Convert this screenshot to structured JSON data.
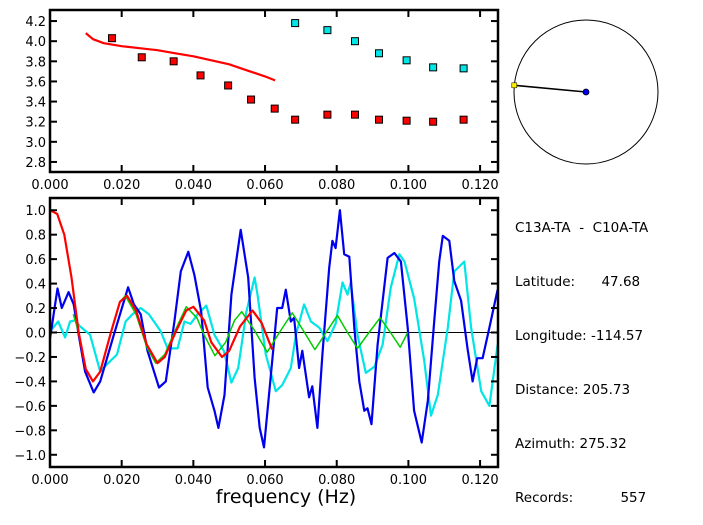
{
  "colors": {
    "red": "#ff0000",
    "cyan": "#00e5e5",
    "blue": "#0000ee",
    "green": "#00cc00",
    "yellow": "#ffee00",
    "axis": "#000000"
  },
  "chart_data": [
    {
      "type": "scatter",
      "title": "",
      "xlabel": "",
      "ylabel": "",
      "xlim": [
        0,
        0.125
      ],
      "ylim": [
        2.7,
        4.31
      ],
      "xticks": [
        "0.000",
        "0.020",
        "0.040",
        "0.060",
        "0.080",
        "0.100",
        "0.120"
      ],
      "yticks": [
        "2.8",
        "3.0",
        "3.2",
        "3.4",
        "3.6",
        "3.8",
        "4.0",
        "4.2"
      ],
      "series": [
        {
          "name": "red-points",
          "kind": "points",
          "color": "red",
          "x": [
            0.0173,
            0.0256,
            0.0345,
            0.042,
            0.0497,
            0.0561,
            0.0627,
            0.0684,
            0.0774,
            0.0851,
            0.0918,
            0.0995,
            0.1069,
            0.1154
          ],
          "y": [
            4.03,
            3.84,
            3.8,
            3.66,
            3.56,
            3.42,
            3.33,
            3.22,
            3.27,
            3.27,
            3.22,
            3.21,
            3.2,
            3.22
          ]
        },
        {
          "name": "cyan-points",
          "kind": "points",
          "color": "cyan",
          "x": [
            0.0684,
            0.0774,
            0.0851,
            0.0918,
            0.0995,
            0.1069,
            0.1154
          ],
          "y": [
            4.18,
            4.11,
            4.0,
            3.88,
            3.81,
            3.74,
            3.73
          ]
        },
        {
          "name": "red-curve",
          "kind": "line",
          "color": "red",
          "x": [
            0.01,
            0.012,
            0.015,
            0.02,
            0.025,
            0.03,
            0.035,
            0.04,
            0.045,
            0.05,
            0.055,
            0.06,
            0.0628
          ],
          "y": [
            4.08,
            4.02,
            3.98,
            3.95,
            3.93,
            3.91,
            3.88,
            3.85,
            3.81,
            3.77,
            3.71,
            3.65,
            3.61
          ]
        }
      ]
    },
    {
      "type": "line",
      "title": "",
      "xlabel": "frequency (Hz)",
      "ylabel": "",
      "xlim": [
        0,
        0.125
      ],
      "ylim": [
        -1.1,
        1.1
      ],
      "xticks": [
        "0.000",
        "0.020",
        "0.040",
        "0.060",
        "0.080",
        "0.100",
        "0.120"
      ],
      "yticks": [
        "-1.0",
        "-0.8",
        "-0.6",
        "-0.4",
        "-0.2",
        "0.0",
        "0.2",
        "0.4",
        "0.6",
        "0.8",
        "1.0"
      ],
      "zero_line": true,
      "series": [
        {
          "name": "cyan",
          "color": "cyan",
          "x": [
            0,
            0.0023,
            0.0042,
            0.0056,
            0.007,
            0.0084,
            0.0112,
            0.014,
            0.0159,
            0.0187,
            0.0211,
            0.023,
            0.0253,
            0.0276,
            0.0309,
            0.0328,
            0.0356,
            0.0375,
            0.0392,
            0.0412,
            0.0436,
            0.0459,
            0.0485,
            0.0506,
            0.0525,
            0.0548,
            0.0571,
            0.0579,
            0.0602,
            0.063,
            0.0648,
            0.0672,
            0.0686,
            0.0709,
            0.0728,
            0.0751,
            0.0774,
            0.0797,
            0.0816,
            0.083,
            0.0839,
            0.0858,
            0.0881,
            0.0905,
            0.0928,
            0.0951,
            0.0975,
            0.0989,
            0.1016,
            0.1044,
            0.1063,
            0.1082,
            0.111,
            0.1128,
            0.1156,
            0.1175,
            0.1203,
            0.1226,
            0.1249
          ],
          "y": [
            0.01,
            0.09,
            -0.04,
            0.09,
            0.1,
            0.05,
            -0.02,
            -0.32,
            -0.26,
            -0.18,
            0.09,
            0.15,
            0.2,
            0.15,
            0.01,
            -0.13,
            -0.13,
            0.09,
            0.07,
            0.15,
            0.22,
            -0.02,
            -0.15,
            -0.41,
            -0.29,
            0.17,
            0.45,
            0.31,
            -0.18,
            -0.48,
            -0.43,
            -0.29,
            -0.02,
            0.23,
            0.09,
            0.04,
            -0.07,
            0.07,
            0.41,
            0.31,
            0.41,
            -0.02,
            -0.33,
            -0.28,
            -0.1,
            0.37,
            0.64,
            0.58,
            0.28,
            -0.23,
            -0.68,
            -0.51,
            0.04,
            0.5,
            0.58,
            0.04,
            -0.48,
            -0.6,
            -0.1
          ]
        },
        {
          "name": "blue",
          "color": "blue",
          "x": [
            0,
            0.0021,
            0.0033,
            0.0052,
            0.0066,
            0.008,
            0.0098,
            0.0122,
            0.014,
            0.0178,
            0.0218,
            0.0234,
            0.0253,
            0.0272,
            0.0304,
            0.0323,
            0.0347,
            0.0365,
            0.0386,
            0.0403,
            0.0422,
            0.044,
            0.0459,
            0.047,
            0.0487,
            0.0506,
            0.0532,
            0.0553,
            0.0571,
            0.0585,
            0.0597,
            0.0611,
            0.0634,
            0.0648,
            0.0658,
            0.0672,
            0.0681,
            0.0695,
            0.0704,
            0.0723,
            0.0732,
            0.0746,
            0.076,
            0.0779,
            0.0788,
            0.0797,
            0.0809,
            0.0821,
            0.0835,
            0.0849,
            0.0863,
            0.0877,
            0.0886,
            0.0897,
            0.0914,
            0.0942,
            0.0961,
            0.0979,
            0.0998,
            0.1016,
            0.1037,
            0.1054,
            0.1072,
            0.1086,
            0.1096,
            0.1114,
            0.1128,
            0.1147,
            0.1165,
            0.1179,
            0.1192,
            0.1207,
            0.1226,
            0.1249
          ],
          "y": [
            -0.05,
            0.36,
            0.2,
            0.33,
            0.23,
            -0.02,
            -0.32,
            -0.49,
            -0.4,
            -0.02,
            0.37,
            0.23,
            0.15,
            -0.15,
            -0.45,
            -0.4,
            0.09,
            0.5,
            0.66,
            0.47,
            0.17,
            -0.45,
            -0.64,
            -0.78,
            -0.51,
            0.31,
            0.84,
            0.45,
            -0.37,
            -0.78,
            -0.94,
            -0.51,
            0.2,
            0.2,
            0.35,
            0.09,
            0.12,
            -0.29,
            -0.15,
            -0.53,
            -0.44,
            -0.78,
            -0.18,
            0.53,
            0.75,
            0.69,
            1.0,
            0.64,
            0.62,
            0.04,
            -0.4,
            -0.64,
            -0.62,
            -0.75,
            -0.1,
            0.61,
            0.65,
            0.58,
            0.04,
            -0.64,
            -0.9,
            -0.56,
            0.09,
            0.58,
            0.79,
            0.75,
            0.42,
            0.26,
            -0.13,
            -0.4,
            -0.21,
            -0.21,
            0.04,
            0.35
          ]
        },
        {
          "name": "green",
          "color": "green",
          "x": [
            0.0065,
            0.008,
            0.01,
            0.012,
            0.014,
            0.017,
            0.0195,
            0.021,
            0.024,
            0.027,
            0.0295,
            0.032,
            0.035,
            0.038,
            0.041,
            0.043,
            0.046,
            0.049,
            0.0515,
            0.0535,
            0.057,
            0.0606,
            0.064,
            0.0676,
            0.071,
            0.0739,
            0.077,
            0.0802,
            0.083,
            0.0858,
            0.089,
            0.0921,
            0.095,
            0.0977,
            0.0998
          ],
          "y": [
            0.15,
            0.0,
            -0.3,
            -0.4,
            -0.32,
            0.0,
            0.25,
            0.3,
            0.15,
            -0.12,
            -0.25,
            -0.18,
            0.02,
            0.21,
            0.12,
            -0.02,
            -0.19,
            -0.08,
            0.1,
            0.17,
            0.02,
            -0.16,
            0.0,
            0.16,
            0.0,
            -0.14,
            0.0,
            0.14,
            0.0,
            -0.13,
            0.0,
            0.12,
            0.0,
            -0.12,
            0.0
          ]
        },
        {
          "name": "red",
          "color": "red",
          "x": [
            0,
            0.002,
            0.004,
            0.006,
            0.008,
            0.01,
            0.012,
            0.014,
            0.017,
            0.0195,
            0.0215,
            0.024,
            0.027,
            0.03,
            0.032,
            0.035,
            0.038,
            0.04,
            0.043,
            0.045,
            0.048,
            0.05,
            0.053,
            0.0565,
            0.059,
            0.062
          ],
          "y": [
            1.0,
            0.97,
            0.8,
            0.45,
            0.0,
            -0.3,
            -0.4,
            -0.32,
            0.0,
            0.25,
            0.3,
            0.18,
            -0.1,
            -0.25,
            -0.2,
            0.0,
            0.18,
            0.21,
            0.1,
            -0.08,
            -0.2,
            -0.15,
            0.05,
            0.18,
            0.08,
            -0.14
          ]
        }
      ]
    }
  ],
  "map": {
    "azimuth_deg": 275.32
  },
  "info": {
    "pair": "C13A-TA  -  C10A-TA",
    "latitude_label": "Latitude:",
    "latitude": "47.68",
    "longitude_label": "Longitude:",
    "longitude": "-114.57",
    "distance_label": "Distance:",
    "distance": "205.73",
    "azimuth_label": "Azimuth:",
    "azimuth": "275.32",
    "records_label": "Records:",
    "records": "557"
  }
}
